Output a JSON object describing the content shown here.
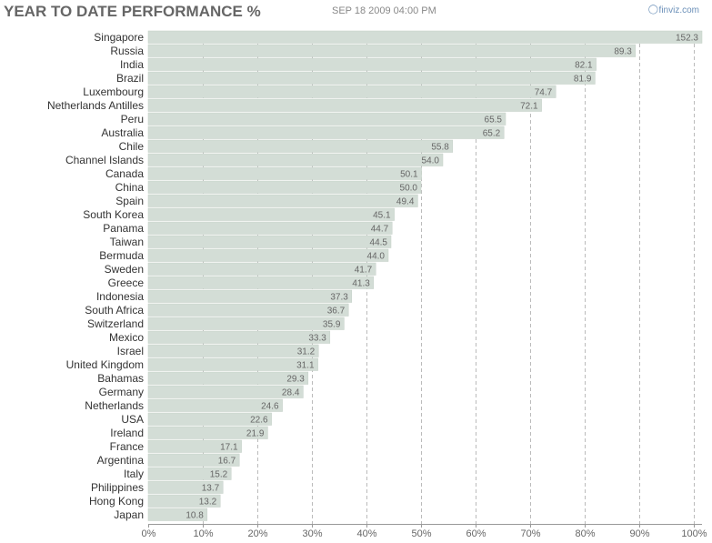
{
  "header": {
    "title": "YEAR TO DATE PERFORMANCE %",
    "timestamp": "SEP 18 2009 04:00 PM",
    "brand": "finviz.com",
    "brand_icon": "globe-icon"
  },
  "colors": {
    "bar_fill": "#d3ddd6",
    "bar_stroke": "#c3cfc6",
    "grid": "#bbbbbb",
    "axis": "#999999"
  },
  "chart_data": {
    "type": "bar",
    "orientation": "horizontal",
    "title": "YEAR TO DATE PERFORMANCE %",
    "xlim": [
      0,
      100
    ],
    "ticks": [
      0,
      10,
      20,
      30,
      40,
      50,
      60,
      70,
      80,
      90,
      100
    ],
    "tick_labels": [
      "0%",
      "10%",
      "20%",
      "30%",
      "40%",
      "50%",
      "60%",
      "70%",
      "80%",
      "90%",
      "100%"
    ],
    "grid": true,
    "categories": [
      "Singapore",
      "Russia",
      "India",
      "Brazil",
      "Luxembourg",
      "Netherlands Antilles",
      "Peru",
      "Australia",
      "Chile",
      "Channel Islands",
      "Canada",
      "China",
      "Spain",
      "South Korea",
      "Panama",
      "Taiwan",
      "Bermuda",
      "Sweden",
      "Greece",
      "Indonesia",
      "South Africa",
      "Switzerland",
      "Mexico",
      "Israel",
      "United Kingdom",
      "Bahamas",
      "Germany",
      "Netherlands",
      "USA",
      "Ireland",
      "France",
      "Argentina",
      "Italy",
      "Philippines",
      "Hong Kong",
      "Japan"
    ],
    "values": [
      152.3,
      89.3,
      82.1,
      81.9,
      74.7,
      72.1,
      65.5,
      65.2,
      55.8,
      54.0,
      50.1,
      50.0,
      49.4,
      45.1,
      44.7,
      44.5,
      44.0,
      41.7,
      41.3,
      37.3,
      36.7,
      35.9,
      33.3,
      31.2,
      31.1,
      29.3,
      28.4,
      24.6,
      22.6,
      21.9,
      17.1,
      16.7,
      15.2,
      13.7,
      13.2,
      10.8
    ],
    "value_labels": [
      "152.3",
      "89.3",
      "82.1",
      "81.9",
      "74.7",
      "72.1",
      "65.5",
      "65.2",
      "55.8",
      "54.0",
      "50.1",
      "50.0",
      "49.4",
      "45.1",
      "44.7",
      "44.5",
      "44.0",
      "41.7",
      "41.3",
      "37.3",
      "36.7",
      "35.9",
      "33.3",
      "31.2",
      "31.1",
      "29.3",
      "28.4",
      "24.6",
      "22.6",
      "21.9",
      "17.1",
      "16.7",
      "15.2",
      "13.7",
      "13.2",
      "10.8"
    ]
  }
}
